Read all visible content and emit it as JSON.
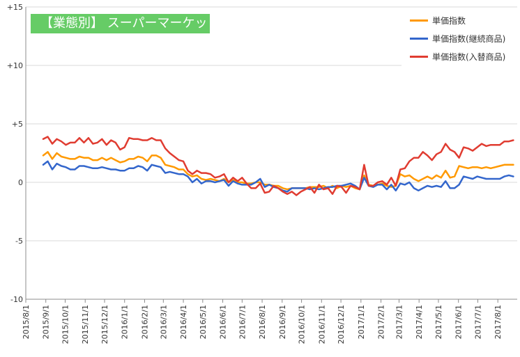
{
  "chart_data": {
    "type": "line",
    "title": "【業態別】 スーパーマーケット",
    "xlabel": "",
    "ylabel": "",
    "ylim": [
      -10,
      15
    ],
    "y_ticks": [
      -10,
      -5,
      0,
      5,
      10,
      15
    ],
    "y_tick_labels": [
      "-10",
      "-5",
      "0",
      "+5",
      "+10",
      "+15"
    ],
    "x_start": "2015-08-01",
    "x_end": "2017-08-31",
    "x_tick_labels": [
      "2015/8/1",
      "2015/9/1",
      "2015/10/1",
      "2015/11/1",
      "2015/12/1",
      "2016/1/1",
      "2016/2/1",
      "2016/3/1",
      "2016/4/1",
      "2016/5/1",
      "2016/6/1",
      "2016/7/1",
      "2016/8/1",
      "2016/9/1",
      "2016/10/1",
      "2016/11/1",
      "2016/12/1",
      "2017/1/1",
      "2017/2/1",
      "2017/3/1",
      "2017/4/1",
      "2017/5/1",
      "2017/6/1",
      "2017/7/1",
      "2017/8/1"
    ],
    "grid": "horizontal",
    "legend_position": "top-right",
    "series": [
      {
        "name": "単価指数",
        "color": "#ff9900",
        "x": [
          "2015-08-28",
          "2015-09-04",
          "2015-09-11",
          "2015-09-18",
          "2015-09-25",
          "2015-10-02",
          "2015-10-09",
          "2015-10-16",
          "2015-10-23",
          "2015-10-30",
          "2015-11-06",
          "2015-11-13",
          "2015-11-20",
          "2015-11-27",
          "2015-12-04",
          "2015-12-11",
          "2015-12-18",
          "2015-12-25",
          "2016-01-01",
          "2016-01-08",
          "2016-01-15",
          "2016-01-22",
          "2016-01-29",
          "2016-02-05",
          "2016-02-12",
          "2016-02-19",
          "2016-02-26",
          "2016-03-04",
          "2016-03-11",
          "2016-03-18",
          "2016-03-25",
          "2016-04-01",
          "2016-04-08",
          "2016-04-15",
          "2016-04-22",
          "2016-04-29",
          "2016-05-06",
          "2016-05-13",
          "2016-05-20",
          "2016-05-27",
          "2016-06-03",
          "2016-06-10",
          "2016-06-17",
          "2016-06-24",
          "2016-07-01",
          "2016-07-08",
          "2016-07-15",
          "2016-07-22",
          "2016-07-29",
          "2016-08-05",
          "2016-08-12",
          "2016-08-19",
          "2016-08-26",
          "2016-09-02",
          "2016-09-09",
          "2016-09-16",
          "2016-09-23",
          "2016-09-30",
          "2016-10-07",
          "2016-10-14",
          "2016-10-21",
          "2016-10-28",
          "2016-11-04",
          "2016-11-11",
          "2016-11-18",
          "2016-11-25",
          "2016-12-02",
          "2016-12-09",
          "2016-12-16",
          "2016-12-23",
          "2016-12-30",
          "2017-01-06",
          "2017-01-13",
          "2017-01-20",
          "2017-01-27",
          "2017-02-03",
          "2017-02-10",
          "2017-02-17",
          "2017-02-24",
          "2017-03-03",
          "2017-03-10",
          "2017-03-17",
          "2017-03-24",
          "2017-03-31",
          "2017-04-07",
          "2017-04-14",
          "2017-04-21",
          "2017-04-28",
          "2017-05-05",
          "2017-05-12",
          "2017-05-19",
          "2017-05-26",
          "2017-06-02",
          "2017-06-09",
          "2017-06-16",
          "2017-06-23",
          "2017-06-30",
          "2017-07-07",
          "2017-07-14",
          "2017-07-21",
          "2017-07-28",
          "2017-08-04",
          "2017-08-11",
          "2017-08-18",
          "2017-08-25"
        ],
        "values": [
          2.3,
          2.6,
          2.0,
          2.5,
          2.2,
          2.1,
          2.0,
          2.0,
          2.2,
          2.1,
          2.1,
          1.9,
          1.9,
          2.1,
          1.9,
          2.1,
          1.9,
          1.7,
          1.8,
          2.0,
          2.0,
          2.2,
          2.1,
          1.8,
          2.3,
          2.3,
          2.1,
          1.5,
          1.4,
          1.3,
          1.1,
          1.1,
          0.7,
          0.5,
          0.6,
          0.3,
          0.2,
          0.3,
          0.2,
          0.1,
          0.3,
          0.0,
          0.2,
          0.0,
          0.0,
          -0.1,
          -0.1,
          0.0,
          0.0,
          -0.2,
          -0.2,
          -0.3,
          -0.3,
          -0.5,
          -0.6,
          -0.5,
          -0.5,
          -0.5,
          -0.5,
          -0.4,
          -0.4,
          -0.4,
          -0.3,
          -0.5,
          -0.3,
          -0.5,
          -0.3,
          -0.4,
          -0.3,
          -0.5,
          -0.6,
          0.6,
          -0.2,
          -0.3,
          -0.2,
          -0.1,
          -0.3,
          -0.4,
          -0.3,
          0.7,
          0.5,
          0.6,
          0.3,
          0.1,
          0.3,
          0.5,
          0.3,
          0.6,
          0.4,
          1.0,
          0.4,
          0.5,
          1.4,
          1.3,
          1.2,
          1.3,
          1.3,
          1.2,
          1.3,
          1.2,
          1.3,
          1.4,
          1.5,
          1.5,
          1.5
        ]
      },
      {
        "name": "単価指数(継続商品)",
        "color": "#3366cc",
        "x": [
          "2015-08-28",
          "2015-09-04",
          "2015-09-11",
          "2015-09-18",
          "2015-09-25",
          "2015-10-02",
          "2015-10-09",
          "2015-10-16",
          "2015-10-23",
          "2015-10-30",
          "2015-11-06",
          "2015-11-13",
          "2015-11-20",
          "2015-11-27",
          "2015-12-04",
          "2015-12-11",
          "2015-12-18",
          "2015-12-25",
          "2016-01-01",
          "2016-01-08",
          "2016-01-15",
          "2016-01-22",
          "2016-01-29",
          "2016-02-05",
          "2016-02-12",
          "2016-02-19",
          "2016-02-26",
          "2016-03-04",
          "2016-03-11",
          "2016-03-18",
          "2016-03-25",
          "2016-04-01",
          "2016-04-08",
          "2016-04-15",
          "2016-04-22",
          "2016-04-29",
          "2016-05-06",
          "2016-05-13",
          "2016-05-20",
          "2016-05-27",
          "2016-06-03",
          "2016-06-10",
          "2016-06-17",
          "2016-06-24",
          "2016-07-01",
          "2016-07-08",
          "2016-07-15",
          "2016-07-22",
          "2016-07-29",
          "2016-08-05",
          "2016-08-12",
          "2016-08-19",
          "2016-08-26",
          "2016-09-02",
          "2016-09-09",
          "2016-09-16",
          "2016-09-23",
          "2016-09-30",
          "2016-10-07",
          "2016-10-14",
          "2016-10-21",
          "2016-10-28",
          "2016-11-04",
          "2016-11-11",
          "2016-11-18",
          "2016-11-25",
          "2016-12-02",
          "2016-12-09",
          "2016-12-16",
          "2016-12-23",
          "2016-12-30",
          "2017-01-06",
          "2017-01-13",
          "2017-01-20",
          "2017-01-27",
          "2017-02-03",
          "2017-02-10",
          "2017-02-17",
          "2017-02-24",
          "2017-03-03",
          "2017-03-10",
          "2017-03-17",
          "2017-03-24",
          "2017-03-31",
          "2017-04-07",
          "2017-04-14",
          "2017-04-21",
          "2017-04-28",
          "2017-05-05",
          "2017-05-12",
          "2017-05-19",
          "2017-05-26",
          "2017-06-02",
          "2017-06-09",
          "2017-06-16",
          "2017-06-23",
          "2017-06-30",
          "2017-07-07",
          "2017-07-14",
          "2017-07-21",
          "2017-07-28",
          "2017-08-04",
          "2017-08-11",
          "2017-08-18",
          "2017-08-25"
        ],
        "values": [
          1.5,
          1.8,
          1.1,
          1.6,
          1.4,
          1.3,
          1.1,
          1.1,
          1.4,
          1.4,
          1.3,
          1.2,
          1.2,
          1.3,
          1.2,
          1.1,
          1.1,
          1.0,
          1.0,
          1.2,
          1.2,
          1.4,
          1.3,
          1.0,
          1.5,
          1.4,
          1.3,
          0.8,
          0.9,
          0.8,
          0.7,
          0.7,
          0.5,
          0.0,
          0.3,
          -0.1,
          0.1,
          0.1,
          0.0,
          0.1,
          0.2,
          -0.3,
          0.1,
          -0.1,
          -0.2,
          -0.2,
          -0.2,
          0.0,
          0.3,
          -0.4,
          -0.2,
          -0.4,
          -0.5,
          -0.7,
          -0.8,
          -0.5,
          -0.5,
          -0.5,
          -0.5,
          -0.6,
          -0.5,
          -0.6,
          -0.5,
          -0.4,
          -0.4,
          -0.3,
          -0.3,
          -0.2,
          -0.1,
          -0.3,
          -0.6,
          0.4,
          -0.3,
          -0.4,
          -0.2,
          -0.2,
          -0.6,
          -0.2,
          -0.7,
          -0.1,
          -0.2,
          0.0,
          -0.5,
          -0.7,
          -0.5,
          -0.3,
          -0.4,
          -0.3,
          -0.4,
          0.1,
          -0.5,
          -0.5,
          -0.2,
          0.5,
          0.4,
          0.3,
          0.5,
          0.4,
          0.3,
          0.3,
          0.3,
          0.3,
          0.5,
          0.6,
          0.5
        ]
      },
      {
        "name": "単価指数(入替商品)",
        "color": "#e03c31",
        "x": [
          "2015-08-28",
          "2015-09-04",
          "2015-09-11",
          "2015-09-18",
          "2015-09-25",
          "2015-10-02",
          "2015-10-09",
          "2015-10-16",
          "2015-10-23",
          "2015-10-30",
          "2015-11-06",
          "2015-11-13",
          "2015-11-20",
          "2015-11-27",
          "2015-12-04",
          "2015-12-11",
          "2015-12-18",
          "2015-12-25",
          "2016-01-01",
          "2016-01-08",
          "2016-01-15",
          "2016-01-22",
          "2016-01-29",
          "2016-02-05",
          "2016-02-12",
          "2016-02-19",
          "2016-02-26",
          "2016-03-04",
          "2016-03-11",
          "2016-03-18",
          "2016-03-25",
          "2016-04-01",
          "2016-04-08",
          "2016-04-15",
          "2016-04-22",
          "2016-04-29",
          "2016-05-06",
          "2016-05-13",
          "2016-05-20",
          "2016-05-27",
          "2016-06-03",
          "2016-06-10",
          "2016-06-17",
          "2016-06-24",
          "2016-07-01",
          "2016-07-08",
          "2016-07-15",
          "2016-07-22",
          "2016-07-29",
          "2016-08-05",
          "2016-08-12",
          "2016-08-19",
          "2016-08-26",
          "2016-09-02",
          "2016-09-09",
          "2016-09-16",
          "2016-09-23",
          "2016-09-30",
          "2016-10-07",
          "2016-10-14",
          "2016-10-21",
          "2016-10-28",
          "2016-11-04",
          "2016-11-11",
          "2016-11-18",
          "2016-11-25",
          "2016-12-02",
          "2016-12-09",
          "2016-12-16",
          "2016-12-23",
          "2016-12-30",
          "2017-01-06",
          "2017-01-13",
          "2017-01-20",
          "2017-01-27",
          "2017-02-03",
          "2017-02-10",
          "2017-02-17",
          "2017-02-24",
          "2017-03-03",
          "2017-03-10",
          "2017-03-17",
          "2017-03-24",
          "2017-03-31",
          "2017-04-07",
          "2017-04-14",
          "2017-04-21",
          "2017-04-28",
          "2017-05-05",
          "2017-05-12",
          "2017-05-19",
          "2017-05-26",
          "2017-06-02",
          "2017-06-09",
          "2017-06-16",
          "2017-06-23",
          "2017-06-30",
          "2017-07-07",
          "2017-07-14",
          "2017-07-21",
          "2017-07-28",
          "2017-08-04",
          "2017-08-11",
          "2017-08-18",
          "2017-08-25"
        ],
        "values": [
          3.7,
          3.9,
          3.3,
          3.7,
          3.5,
          3.2,
          3.4,
          3.4,
          3.8,
          3.4,
          3.8,
          3.3,
          3.4,
          3.7,
          3.2,
          3.6,
          3.4,
          2.8,
          3.0,
          3.8,
          3.7,
          3.7,
          3.6,
          3.6,
          3.8,
          3.6,
          3.6,
          2.9,
          2.5,
          2.2,
          1.9,
          1.8,
          1.0,
          0.7,
          1.0,
          0.8,
          0.8,
          0.7,
          0.4,
          0.5,
          0.7,
          0.0,
          0.4,
          0.1,
          0.4,
          -0.1,
          -0.5,
          -0.5,
          -0.1,
          -0.9,
          -0.8,
          -0.3,
          -0.5,
          -0.8,
          -1.0,
          -0.8,
          -1.1,
          -0.8,
          -0.6,
          -0.4,
          -0.9,
          -0.2,
          -0.6,
          -0.5,
          -1.0,
          -0.3,
          -0.4,
          -0.9,
          -0.3,
          -0.4,
          -0.6,
          1.5,
          -0.3,
          -0.3,
          0.0,
          0.1,
          -0.2,
          0.4,
          -0.3,
          1.1,
          1.2,
          1.8,
          2.1,
          2.1,
          2.6,
          2.3,
          1.9,
          2.4,
          2.6,
          3.3,
          2.8,
          2.6,
          2.1,
          3.0,
          2.9,
          2.7,
          3.0,
          3.3,
          3.1,
          3.2,
          3.2,
          3.2,
          3.5,
          3.5,
          3.6
        ]
      }
    ]
  }
}
